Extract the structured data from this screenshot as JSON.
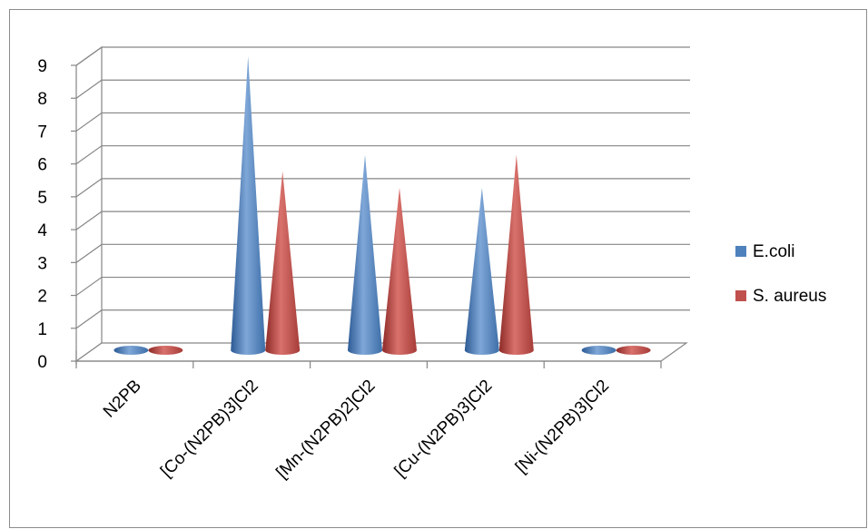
{
  "chart_data": {
    "type": "bar",
    "style": "3d-cone",
    "categories": [
      "N2PB",
      "[Co-(N2PB)3]Cl2",
      "[Mn-(N2PB)2]Cl2",
      "[Cu-(N2PB)3]Cl2",
      "[Ni-(N2PB)3]Cl2"
    ],
    "series": [
      {
        "name": "E.coli",
        "values": [
          0,
          9,
          6,
          5,
          0
        ],
        "color": "#4f81bd"
      },
      {
        "name": "S. aureus",
        "values": [
          0,
          5.5,
          5,
          6,
          0
        ],
        "color": "#c0504d"
      }
    ],
    "yticks": [
      "0",
      "1",
      "2",
      "3",
      "4",
      "5",
      "6",
      "7",
      "8",
      "9"
    ],
    "ylim": [
      0,
      9
    ],
    "grid": true,
    "legend_position": "right"
  }
}
